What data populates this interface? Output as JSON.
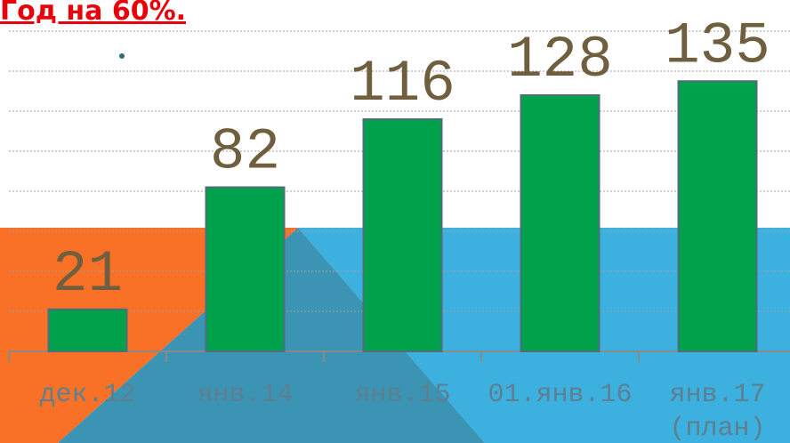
{
  "chart_data": {
    "type": "bar",
    "title": "Год на 60%.",
    "categories": [
      "дек.12",
      "янв.14",
      "янв.15",
      "01.янв.16",
      "янв.17 (план)"
    ],
    "values": [
      21,
      82,
      116,
      128,
      135
    ],
    "color": "#00a14b",
    "ylim": [
      0,
      160
    ],
    "yticks": [
      20,
      40,
      60,
      80,
      100,
      120,
      140,
      160
    ],
    "grid": true
  }
}
